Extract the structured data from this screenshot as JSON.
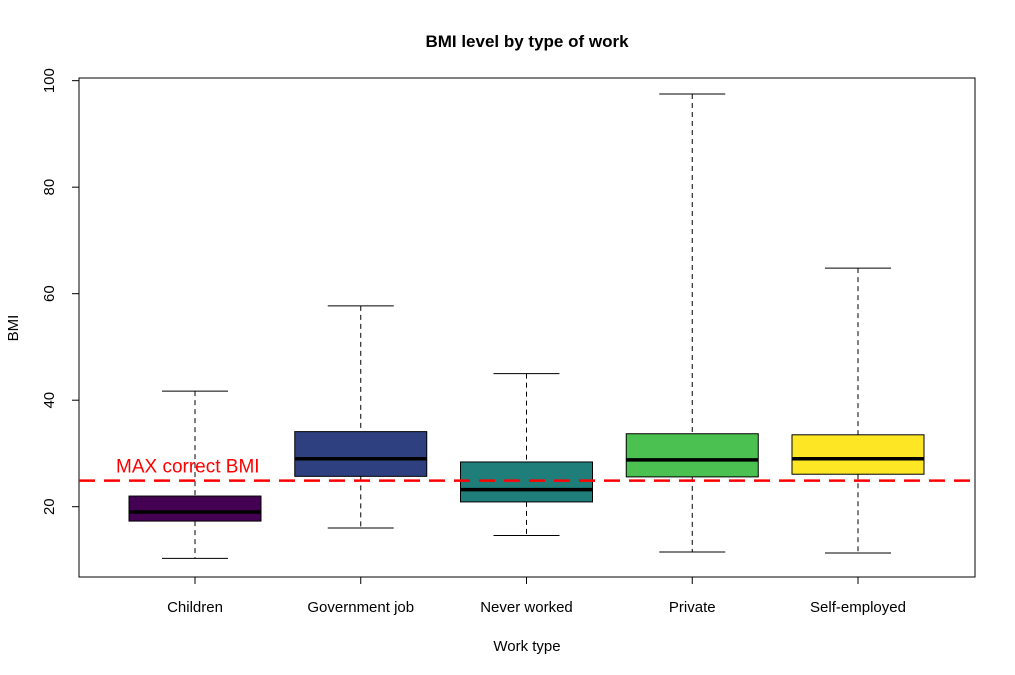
{
  "chart_data": {
    "type": "box",
    "title": "BMI level by type of work",
    "xlabel": "Work type",
    "ylabel": "BMI",
    "ylim": [
      6.8,
      100.5
    ],
    "yticks": [
      20,
      40,
      60,
      80,
      100
    ],
    "grid": false,
    "categories": [
      "Children",
      "Government job",
      "Never worked",
      "Private",
      "Self-employed"
    ],
    "boxes": [
      {
        "category": "Children",
        "min": 10.3,
        "q1": 17.3,
        "median": 19.0,
        "q3": 22.0,
        "max": 41.7,
        "color": "#440154"
      },
      {
        "category": "Government job",
        "min": 16.0,
        "q1": 25.7,
        "median": 29.0,
        "q3": 34.1,
        "max": 57.7,
        "color": "#2F4081"
      },
      {
        "category": "Never worked",
        "min": 14.6,
        "q1": 20.9,
        "median": 23.2,
        "q3": 28.4,
        "max": 45.0,
        "color": "#1F7E7A"
      },
      {
        "category": "Private",
        "min": 11.5,
        "q1": 25.6,
        "median": 28.8,
        "q3": 33.7,
        "max": 97.5,
        "color": "#4AC150"
      },
      {
        "category": "Self-employed",
        "min": 11.3,
        "q1": 26.1,
        "median": 29.0,
        "q3": 33.5,
        "max": 64.8,
        "color": "#FDE725"
      }
    ],
    "reference_line": {
      "value": 24.9,
      "label": "MAX correct BMI",
      "color": "#FF0000",
      "style": "dashed"
    }
  }
}
